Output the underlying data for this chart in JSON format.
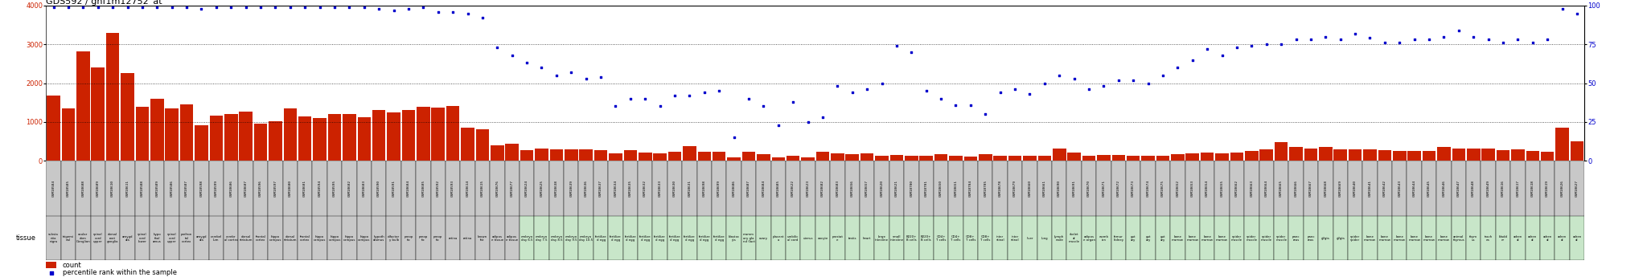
{
  "title": "GDS592 / gnf1m12752_at",
  "bar_color": "#cc2200",
  "dot_color": "#0000cc",
  "bar_ylim": [
    0,
    4000
  ],
  "bar_yticks": [
    0,
    1000,
    2000,
    3000,
    4000
  ],
  "dot_ylim": [
    0,
    100
  ],
  "dot_yticks": [
    0,
    25,
    50,
    75,
    100
  ],
  "samples": [
    {
      "gsm": "GSM18584",
      "tissue": "substa\nntia\nnigra",
      "count": 1680,
      "pct": 99,
      "tissue_bg": "#c8c8c8"
    },
    {
      "gsm": "GSM18585",
      "tissue": "trigemi\nnal",
      "count": 1350,
      "pct": 99,
      "tissue_bg": "#c8c8c8"
    },
    {
      "gsm": "GSM18608",
      "tissue": "ocular\ndom\nGanglion",
      "count": 2810,
      "pct": 99,
      "tissue_bg": "#c8c8c8"
    },
    {
      "gsm": "GSM18609",
      "tissue": "spinal\ncord\nupper",
      "count": 2410,
      "pct": 99,
      "tissue_bg": "#c8c8c8"
    },
    {
      "gsm": "GSM18610",
      "tissue": "dorsal\nroot\nganglia",
      "count": 3290,
      "pct": 99,
      "tissue_bg": "#c8c8c8"
    },
    {
      "gsm": "GSM18611",
      "tissue": "amygd\nala",
      "count": 2250,
      "pct": 99,
      "tissue_bg": "#c8c8c8"
    },
    {
      "gsm": "GSM18588",
      "tissue": "spinal\ncord\nlower",
      "count": 1380,
      "pct": 99,
      "tissue_bg": "#c8c8c8"
    },
    {
      "gsm": "GSM18589",
      "tissue": "hypo\nthal\namus",
      "count": 1590,
      "pct": 99,
      "tissue_bg": "#c8c8c8"
    },
    {
      "gsm": "GSM18586",
      "tissue": "spinal\ncord\nupper",
      "count": 1350,
      "pct": 99,
      "tissue_bg": "#c8c8c8"
    },
    {
      "gsm": "GSM18587",
      "tissue": "prefron\ntal\ncortex",
      "count": 1460,
      "pct": 99,
      "tissue_bg": "#c8c8c8"
    },
    {
      "gsm": "GSM18598",
      "tissue": "amygd\nala",
      "count": 920,
      "pct": 98,
      "tissue_bg": "#c8c8c8"
    },
    {
      "gsm": "GSM18599",
      "tissue": "cerebel\nlum",
      "count": 1160,
      "pct": 99,
      "tissue_bg": "#c8c8c8"
    },
    {
      "gsm": "GSM18606",
      "tissue": "cerebr\nal cortex",
      "count": 1200,
      "pct": 99,
      "tissue_bg": "#c8c8c8"
    },
    {
      "gsm": "GSM18607",
      "tissue": "dorsal\nstriatum",
      "count": 1270,
      "pct": 99,
      "tissue_bg": "#c8c8c8"
    },
    {
      "gsm": "GSM18596",
      "tissue": "frontal\ncortex",
      "count": 960,
      "pct": 99,
      "tissue_bg": "#c8c8c8"
    },
    {
      "gsm": "GSM18597",
      "tissue": "hippo\ncampus",
      "count": 1020,
      "pct": 99,
      "tissue_bg": "#c8c8c8"
    },
    {
      "gsm": "GSM18600",
      "tissue": "dorsal\nstriatum",
      "count": 1340,
      "pct": 99,
      "tissue_bg": "#c8c8c8"
    },
    {
      "gsm": "GSM18601",
      "tissue": "frontal\ncortex",
      "count": 1150,
      "pct": 99,
      "tissue_bg": "#c8c8c8"
    },
    {
      "gsm": "GSM18594",
      "tissue": "hippo\ncampus",
      "count": 1100,
      "pct": 99,
      "tissue_bg": "#c8c8c8"
    },
    {
      "gsm": "GSM18595",
      "tissue": "hippo\ncampus",
      "count": 1200,
      "pct": 99,
      "tissue_bg": "#c8c8c8"
    },
    {
      "gsm": "GSM18602",
      "tissue": "hippo\ncampus",
      "count": 1200,
      "pct": 99,
      "tissue_bg": "#c8c8c8"
    },
    {
      "gsm": "GSM18603",
      "tissue": "hippo\ncampus",
      "count": 1130,
      "pct": 99,
      "tissue_bg": "#c8c8c8"
    },
    {
      "gsm": "GSM18590",
      "tissue": "hypoth\nalamus",
      "count": 1300,
      "pct": 98,
      "tissue_bg": "#c8c8c8"
    },
    {
      "gsm": "GSM18591",
      "tissue": "olfactor\ny bulb",
      "count": 1250,
      "pct": 97,
      "tissue_bg": "#c8c8c8"
    },
    {
      "gsm": "GSM18604",
      "tissue": "preop\ntic",
      "count": 1310,
      "pct": 98,
      "tissue_bg": "#c8c8c8"
    },
    {
      "gsm": "GSM18605",
      "tissue": "preop\ntic",
      "count": 1380,
      "pct": 99,
      "tissue_bg": "#c8c8c8"
    },
    {
      "gsm": "GSM18592",
      "tissue": "preop\ntic",
      "count": 1360,
      "pct": 96,
      "tissue_bg": "#c8c8c8"
    },
    {
      "gsm": "GSM18593",
      "tissue": "retina",
      "count": 1420,
      "pct": 96,
      "tissue_bg": "#c8c8c8"
    },
    {
      "gsm": "GSM18614",
      "tissue": "retina",
      "count": 850,
      "pct": 95,
      "tissue_bg": "#c8c8c8"
    },
    {
      "gsm": "GSM18615",
      "tissue": "brown\nfat",
      "count": 810,
      "pct": 92,
      "tissue_bg": "#c8c8c8"
    },
    {
      "gsm": "GSM18676",
      "tissue": "adipos\ne tissue",
      "count": 390,
      "pct": 73,
      "tissue_bg": "#c8c8c8"
    },
    {
      "gsm": "GSM18677",
      "tissue": "adipos\ne tissue",
      "count": 430,
      "pct": 68,
      "tissue_bg": "#c8c8c8"
    },
    {
      "gsm": "GSM18624",
      "tissue": "embryo\nday 6.5",
      "count": 280,
      "pct": 63,
      "tissue_bg": "#c8e6c9"
    },
    {
      "gsm": "GSM18625",
      "tissue": "embryo\nday 7.5",
      "count": 320,
      "pct": 60,
      "tissue_bg": "#c8e6c9"
    },
    {
      "gsm": "GSM18638",
      "tissue": "embryo\nday 8.5",
      "count": 290,
      "pct": 55,
      "tissue_bg": "#c8e6c9"
    },
    {
      "gsm": "GSM18639",
      "tissue": "embryo\nday 9.5",
      "count": 290,
      "pct": 57,
      "tissue_bg": "#c8e6c9"
    },
    {
      "gsm": "GSM18636",
      "tissue": "embryo\nday 10.5",
      "count": 300,
      "pct": 53,
      "tissue_bg": "#c8e6c9"
    },
    {
      "gsm": "GSM18637",
      "tissue": "fertilize\nd egg",
      "count": 280,
      "pct": 54,
      "tissue_bg": "#c8e6c9"
    },
    {
      "gsm": "GSM18634",
      "tissue": "fertilize\nd egg",
      "count": 180,
      "pct": 35,
      "tissue_bg": "#c8e6c9"
    },
    {
      "gsm": "GSM18635",
      "tissue": "fertilize\nd egg",
      "count": 280,
      "pct": 40,
      "tissue_bg": "#c8e6c9"
    },
    {
      "gsm": "GSM18632",
      "tissue": "fertilize\nd egg",
      "count": 200,
      "pct": 40,
      "tissue_bg": "#c8e6c9"
    },
    {
      "gsm": "GSM18633",
      "tissue": "fertilize\nd egg",
      "count": 180,
      "pct": 35,
      "tissue_bg": "#c8e6c9"
    },
    {
      "gsm": "GSM18630",
      "tissue": "fertilize\nd egg",
      "count": 220,
      "pct": 42,
      "tissue_bg": "#c8e6c9"
    },
    {
      "gsm": "GSM18631",
      "tissue": "fertilize\nd egg",
      "count": 370,
      "pct": 42,
      "tissue_bg": "#c8e6c9"
    },
    {
      "gsm": "GSM18698",
      "tissue": "fertilize\nd egg",
      "count": 240,
      "pct": 44,
      "tissue_bg": "#c8e6c9"
    },
    {
      "gsm": "GSM18699",
      "tissue": "fertilize\nd egg",
      "count": 240,
      "pct": 45,
      "tissue_bg": "#c8e6c9"
    },
    {
      "gsm": "GSM18686",
      "tissue": "blastoc\nyts",
      "count": 80,
      "pct": 15,
      "tissue_bg": "#c8e6c9"
    },
    {
      "gsm": "GSM18687",
      "tissue": "mamm\nary gla\nnd (lact",
      "count": 240,
      "pct": 40,
      "tissue_bg": "#c8e6c9"
    },
    {
      "gsm": "GSM18684",
      "tissue": "ovary",
      "count": 170,
      "pct": 35,
      "tissue_bg": "#c8e6c9"
    },
    {
      "gsm": "GSM18685",
      "tissue": "placent\na",
      "count": 80,
      "pct": 23,
      "tissue_bg": "#c8e6c9"
    },
    {
      "gsm": "GSM18622",
      "tissue": "umbilic\nal cord",
      "count": 120,
      "pct": 38,
      "tissue_bg": "#c8e6c9"
    },
    {
      "gsm": "GSM18623",
      "tissue": "uterus",
      "count": 85,
      "pct": 25,
      "tissue_bg": "#c8e6c9"
    },
    {
      "gsm": "GSM18682",
      "tissue": "oocyte",
      "count": 220,
      "pct": 28,
      "tissue_bg": "#c8e6c9"
    },
    {
      "gsm": "GSM18683",
      "tissue": "prostat\ne",
      "count": 190,
      "pct": 48,
      "tissue_bg": "#c8e6c9"
    },
    {
      "gsm": "GSM18656",
      "tissue": "testis",
      "count": 170,
      "pct": 44,
      "tissue_bg": "#c8e6c9"
    },
    {
      "gsm": "GSM18657",
      "tissue": "heart",
      "count": 190,
      "pct": 46,
      "tissue_bg": "#c8e6c9"
    },
    {
      "gsm": "GSM18620",
      "tissue": "large\nintestine",
      "count": 130,
      "pct": 50,
      "tissue_bg": "#c8e6c9"
    },
    {
      "gsm": "GSM18621",
      "tissue": "small\nintestine",
      "count": 140,
      "pct": 74,
      "tissue_bg": "#c8e6c9"
    },
    {
      "gsm": "GSM18700",
      "tissue": "B220+\nB cells",
      "count": 130,
      "pct": 70,
      "tissue_bg": "#c8e6c9"
    },
    {
      "gsm": "GSM18701",
      "tissue": "B220+\nB cells",
      "count": 130,
      "pct": 45,
      "tissue_bg": "#c8e6c9"
    },
    {
      "gsm": "GSM18650",
      "tissue": "CD4+\nT cells",
      "count": 160,
      "pct": 40,
      "tissue_bg": "#c8e6c9"
    },
    {
      "gsm": "GSM18651",
      "tissue": "CD4+\nT cells",
      "count": 120,
      "pct": 36,
      "tissue_bg": "#c8e6c9"
    },
    {
      "gsm": "GSM18704",
      "tissue": "CD8+\nT cells",
      "count": 100,
      "pct": 36,
      "tissue_bg": "#c8e6c9"
    },
    {
      "gsm": "GSM18705",
      "tissue": "CD8+\nT cells",
      "count": 170,
      "pct": 30,
      "tissue_bg": "#c8e6c9"
    },
    {
      "gsm": "GSM18678",
      "tissue": "inter\nstinal",
      "count": 130,
      "pct": 44,
      "tissue_bg": "#c8e6c9"
    },
    {
      "gsm": "GSM18679",
      "tissue": "inter\nstinal",
      "count": 130,
      "pct": 46,
      "tissue_bg": "#c8e6c9"
    },
    {
      "gsm": "GSM18660",
      "tissue": "liver",
      "count": 120,
      "pct": 43,
      "tissue_bg": "#c8e6c9"
    },
    {
      "gsm": "GSM18661",
      "tissue": "lung",
      "count": 130,
      "pct": 50,
      "tissue_bg": "#c8e6c9"
    },
    {
      "gsm": "GSM18690",
      "tissue": "lymph\nnode",
      "count": 310,
      "pct": 55,
      "tissue_bg": "#c8e6c9"
    },
    {
      "gsm": "GSM18691",
      "tissue": "skelet\nal\nmuscle",
      "count": 200,
      "pct": 53,
      "tissue_bg": "#c8e6c9"
    },
    {
      "gsm": "GSM18670",
      "tissue": "adipos\ne organ",
      "count": 130,
      "pct": 46,
      "tissue_bg": "#c8e6c9"
    },
    {
      "gsm": "GSM18671",
      "tissue": "womb\nian",
      "count": 150,
      "pct": 48,
      "tissue_bg": "#c8e6c9"
    },
    {
      "gsm": "GSM18672",
      "tissue": "femur\nkidney",
      "count": 140,
      "pct": 52,
      "tissue_bg": "#c8e6c9"
    },
    {
      "gsm": "GSM18673",
      "tissue": "gut\nary",
      "count": 130,
      "pct": 52,
      "tissue_bg": "#c8e6c9"
    },
    {
      "gsm": "GSM18674",
      "tissue": "gut\nary",
      "count": 120,
      "pct": 50,
      "tissue_bg": "#c8e6c9"
    },
    {
      "gsm": "GSM18675",
      "tissue": "gut\nary",
      "count": 130,
      "pct": 55,
      "tissue_bg": "#c8e6c9"
    },
    {
      "gsm": "GSM18652",
      "tissue": "bone\nmarrow",
      "count": 170,
      "pct": 60,
      "tissue_bg": "#c8e6c9"
    },
    {
      "gsm": "GSM18653",
      "tissue": "bone\nmarrow",
      "count": 190,
      "pct": 65,
      "tissue_bg": "#c8e6c9"
    },
    {
      "gsm": "GSM18654",
      "tissue": "bone\nmarrow",
      "count": 200,
      "pct": 72,
      "tissue_bg": "#c8e6c9"
    },
    {
      "gsm": "GSM18655",
      "tissue": "bone\nmarrow",
      "count": 180,
      "pct": 68,
      "tissue_bg": "#c8e6c9"
    },
    {
      "gsm": "GSM18662",
      "tissue": "spider\nmuscle",
      "count": 200,
      "pct": 73,
      "tissue_bg": "#c8e6c9"
    },
    {
      "gsm": "GSM18663",
      "tissue": "spider\nmuscle",
      "count": 250,
      "pct": 74,
      "tissue_bg": "#c8e6c9"
    },
    {
      "gsm": "GSM18664",
      "tissue": "spider\nmuscle",
      "count": 300,
      "pct": 75,
      "tissue_bg": "#c8e6c9"
    },
    {
      "gsm": "GSM18665",
      "tissue": "spider\nmuscle",
      "count": 480,
      "pct": 75,
      "tissue_bg": "#c8e6c9"
    },
    {
      "gsm": "GSM18666",
      "tissue": "panc\nreas",
      "count": 350,
      "pct": 78,
      "tissue_bg": "#c8e6c9"
    },
    {
      "gsm": "GSM18667",
      "tissue": "panc\nreas",
      "count": 310,
      "pct": 78,
      "tissue_bg": "#c8e6c9"
    },
    {
      "gsm": "GSM18668",
      "tissue": "gl/gts",
      "count": 350,
      "pct": 80,
      "tissue_bg": "#c8e6c9"
    },
    {
      "gsm": "GSM18669",
      "tissue": "gl/gts",
      "count": 300,
      "pct": 78,
      "tissue_bg": "#c8e6c9"
    },
    {
      "gsm": "GSM18640",
      "tissue": "spider\nspider",
      "count": 300,
      "pct": 82,
      "tissue_bg": "#c8e6c9"
    },
    {
      "gsm": "GSM18641",
      "tissue": "bone\nmarrow",
      "count": 300,
      "pct": 79,
      "tissue_bg": "#c8e6c9"
    },
    {
      "gsm": "GSM18642",
      "tissue": "bone\nmarrow",
      "count": 280,
      "pct": 76,
      "tissue_bg": "#c8e6c9"
    },
    {
      "gsm": "GSM18643",
      "tissue": "bone\nmarrow",
      "count": 250,
      "pct": 76,
      "tissue_bg": "#c8e6c9"
    },
    {
      "gsm": "GSM18644",
      "tissue": "bone\nmarrow",
      "count": 260,
      "pct": 78,
      "tissue_bg": "#c8e6c9"
    },
    {
      "gsm": "GSM18645",
      "tissue": "bone\nmarrow",
      "count": 250,
      "pct": 78,
      "tissue_bg": "#c8e6c9"
    },
    {
      "gsm": "GSM18646",
      "tissue": "bone\nmarrow",
      "count": 350,
      "pct": 80,
      "tissue_bg": "#c8e6c9"
    },
    {
      "gsm": "GSM18647",
      "tissue": "animal\nthymus",
      "count": 310,
      "pct": 84,
      "tissue_bg": "#c8e6c9"
    },
    {
      "gsm": "GSM18648",
      "tissue": "thym\nus",
      "count": 310,
      "pct": 80,
      "tissue_bg": "#c8e6c9"
    },
    {
      "gsm": "GSM18649",
      "tissue": "trach\nea",
      "count": 310,
      "pct": 78,
      "tissue_bg": "#c8e6c9"
    },
    {
      "gsm": "GSM18616",
      "tissue": "bladd\ner",
      "count": 280,
      "pct": 76,
      "tissue_bg": "#c8e6c9"
    },
    {
      "gsm": "GSM18617",
      "tissue": "adren\nal",
      "count": 290,
      "pct": 78,
      "tissue_bg": "#c8e6c9"
    },
    {
      "gsm": "GSM18618",
      "tissue": "adren\nal",
      "count": 250,
      "pct": 76,
      "tissue_bg": "#c8e6c9"
    },
    {
      "gsm": "GSM18619",
      "tissue": "adren\nal",
      "count": 240,
      "pct": 78,
      "tissue_bg": "#c8e6c9"
    },
    {
      "gsm": "GSM18626",
      "tissue": "adren\nal",
      "count": 850,
      "pct": 98,
      "tissue_bg": "#c8e6c9"
    },
    {
      "gsm": "GSM18627",
      "tissue": "adren\nal",
      "count": 500,
      "pct": 95,
      "tissue_bg": "#c8e6c9"
    }
  ]
}
